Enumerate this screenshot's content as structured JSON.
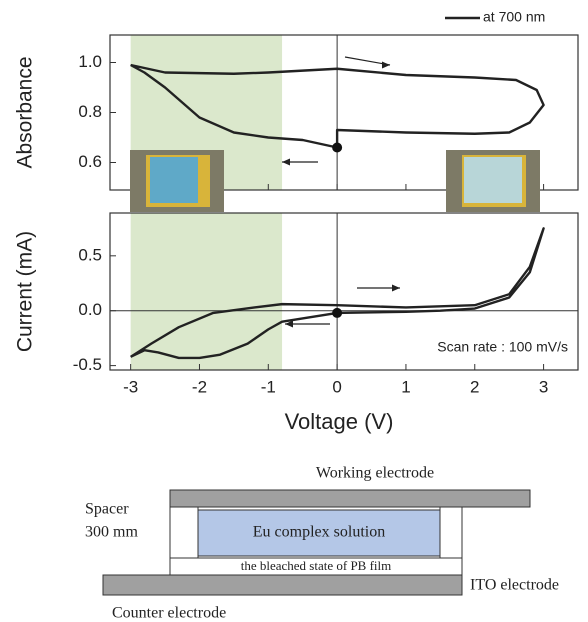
{
  "chart_data": [
    {
      "type": "line",
      "ylabel": "Absorbance",
      "xlim": [
        -3.3,
        3.5
      ],
      "xticks": [
        -3,
        -2,
        -1,
        0,
        1,
        2,
        3
      ],
      "ylim": [
        0.49,
        1.11
      ],
      "yticks": [
        0.6,
        0.8,
        {
          "value": 1,
          "label": "1.0"
        }
      ],
      "shaded_xrange": [
        -3,
        -0.8
      ],
      "ref_x": 0,
      "point": {
        "x": 0,
        "y": 0.66
      },
      "x": [
        -3,
        -2.5,
        -1.5,
        -1,
        0,
        1,
        2,
        2.6,
        2.9,
        3,
        2.8,
        2.5,
        2,
        1,
        0,
        0,
        -0.5,
        -1,
        -1.5,
        -2,
        -2.5,
        -2.8,
        -3
      ],
      "series": [
        {
          "name": "at 700 nm",
          "color": "#222222",
          "values": [
            0.99,
            0.96,
            0.955,
            0.96,
            0.975,
            0.95,
            0.94,
            0.93,
            0.89,
            0.83,
            0.76,
            0.72,
            0.715,
            0.72,
            0.73,
            0.66,
            0.69,
            0.7,
            0.72,
            0.78,
            0.9,
            0.96,
            0.99
          ]
        }
      ]
    },
    {
      "type": "line",
      "ylabel": "Current (mA)",
      "xlabel": "Voltage (V)",
      "annotation": "Scan rate : 100 mV/s",
      "xlim": [
        -3.3,
        3.5
      ],
      "xticks": [
        -3,
        -2,
        -1,
        0,
        1,
        2,
        3
      ],
      "ylim": [
        -0.54,
        0.89
      ],
      "yticks": [
        -0.5,
        {
          "value": 0,
          "label": "0.0"
        },
        0.5
      ],
      "shaded_xrange": [
        -3,
        -0.8
      ],
      "ref_x": 0,
      "ref_y": 0,
      "point": {
        "x": 0,
        "y": -0.02
      },
      "x": [
        -3,
        -2.7,
        -2.3,
        -1.8,
        -1.2,
        -0.8,
        0,
        1,
        2,
        2.5,
        2.8,
        3,
        2.8,
        2.5,
        2,
        1.5,
        1,
        0,
        -0.8,
        -1,
        -1.3,
        -1.7,
        -2,
        -2.3,
        -2.6,
        -2.8,
        -3
      ],
      "series": [
        {
          "name": null,
          "color": "#222222",
          "values": [
            -0.42,
            -0.3,
            -0.15,
            -0.02,
            0.03,
            0.06,
            0.05,
            0.03,
            0.05,
            0.15,
            0.4,
            0.75,
            0.35,
            0.12,
            0.02,
            0,
            -0.01,
            -0.02,
            -0.1,
            -0.17,
            -0.3,
            -0.4,
            -0.43,
            -0.43,
            -0.38,
            -0.36,
            -0.42
          ]
        }
      ]
    }
  ],
  "diagram": {
    "working": "Working electrode",
    "spacer": "Spacer",
    "spacer_size": "300 mm",
    "solution": "Eu complex solution",
    "film": "the bleached state of PB film",
    "ito": "ITO electrode",
    "counter": "Counter electrode"
  }
}
